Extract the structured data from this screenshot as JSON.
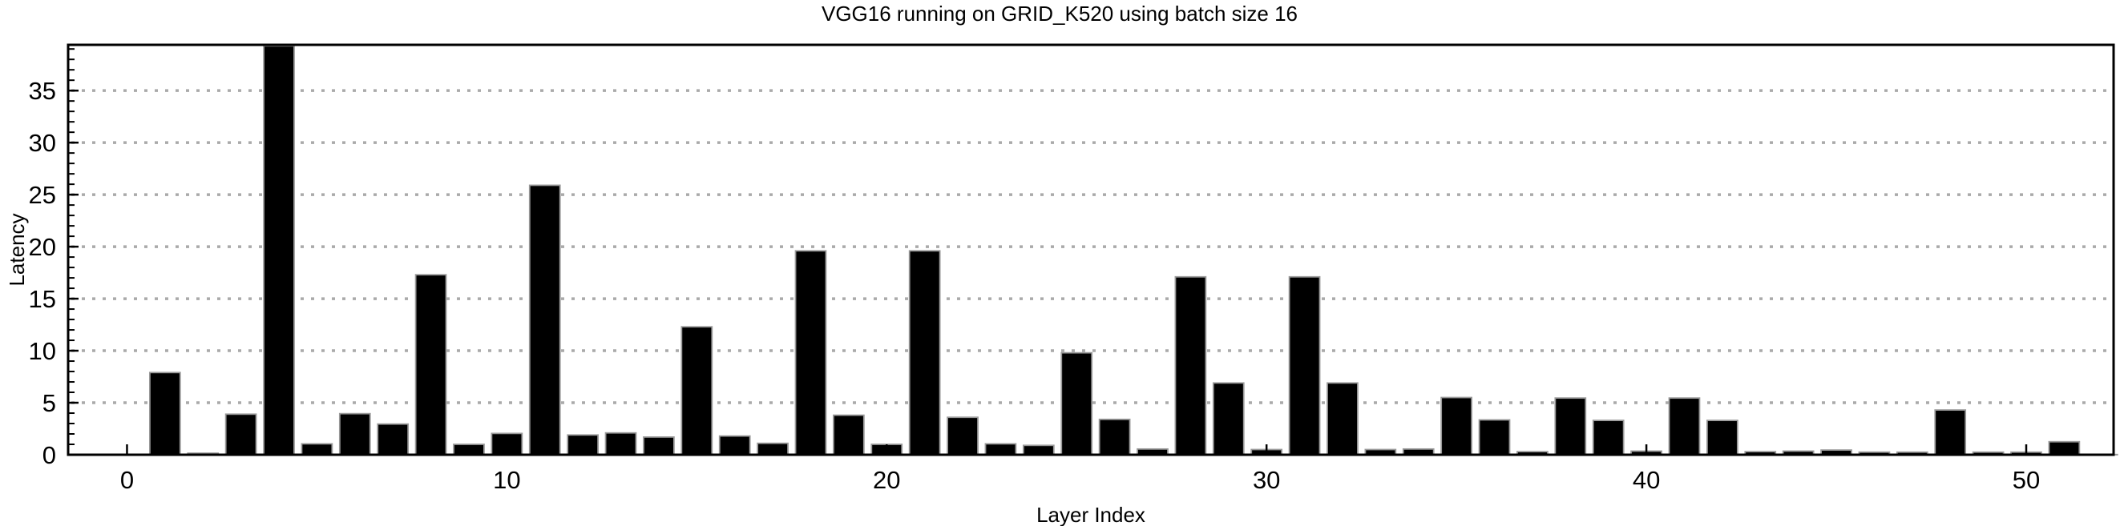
{
  "figure": {
    "title": "VGG16 running on GRID_K520 using batch size 16",
    "xlabel": "Layer Index",
    "ylabel": "Latency"
  },
  "chart_data": {
    "type": "bar",
    "title": "VGG16 running on GRID_K520 using batch size 16",
    "xlabel": "Layer Index",
    "ylabel": "Latency",
    "categories": [
      0,
      1,
      2,
      3,
      4,
      5,
      6,
      7,
      8,
      9,
      10,
      11,
      12,
      13,
      14,
      15,
      16,
      17,
      18,
      19,
      20,
      21,
      22,
      23,
      24,
      25,
      26,
      27,
      28,
      29,
      30,
      31,
      32,
      33,
      34,
      35,
      36,
      37,
      38,
      39,
      40,
      41,
      42,
      43,
      44,
      45,
      46,
      47,
      48,
      49,
      50,
      51,
      52
    ],
    "values": [
      0.02,
      7.9,
      0.15,
      3.9,
      39.3,
      1.05,
      3.95,
      2.95,
      17.3,
      1.0,
      2.05,
      25.9,
      1.9,
      2.1,
      1.7,
      12.3,
      1.8,
      1.1,
      19.6,
      3.8,
      1.0,
      19.6,
      3.6,
      1.05,
      0.9,
      9.8,
      3.4,
      0.55,
      17.1,
      6.9,
      0.5,
      17.1,
      6.9,
      0.5,
      0.55,
      5.5,
      3.35,
      0.3,
      5.45,
      3.3,
      0.35,
      5.45,
      3.3,
      0.3,
      0.35,
      0.45,
      0.25,
      0.25,
      4.3,
      0.25,
      0.25,
      1.25,
      0.02
    ],
    "xlim": [
      -1.55,
      52.3
    ],
    "ylim": [
      0,
      39.4
    ],
    "x_major_ticks": [
      0,
      10,
      20,
      30,
      40,
      50
    ],
    "x_minor_tick_step": 2,
    "y_major_ticks": [
      0,
      5,
      10,
      15,
      20,
      25,
      30,
      35
    ],
    "y_minor_tick_step": 1,
    "bar_width_fraction": 0.8,
    "grid": {
      "axis": "y",
      "on_ticks": "major",
      "style": "dotted",
      "color": "#aaaaaa"
    },
    "legend_position": "none",
    "bar_color": "#000000",
    "bar_edge_color": "#999999",
    "axis_color": "#000000",
    "background": "#ffffff"
  }
}
